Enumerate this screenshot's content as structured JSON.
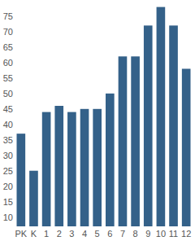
{
  "chart_data": {
    "type": "bar",
    "categories": [
      "PK",
      "K",
      "1",
      "2",
      "3",
      "4",
      "5",
      "6",
      "7",
      "8",
      "9",
      "10",
      "11",
      "12"
    ],
    "values": [
      37,
      25,
      44,
      46,
      44,
      45,
      45,
      50,
      62,
      62,
      72,
      78,
      72,
      58
    ],
    "color": "#346189",
    "ylim": [
      7,
      80
    ],
    "yticks": [
      10,
      15,
      20,
      25,
      30,
      35,
      40,
      45,
      50,
      55,
      60,
      65,
      70,
      75
    ],
    "grid": false
  }
}
